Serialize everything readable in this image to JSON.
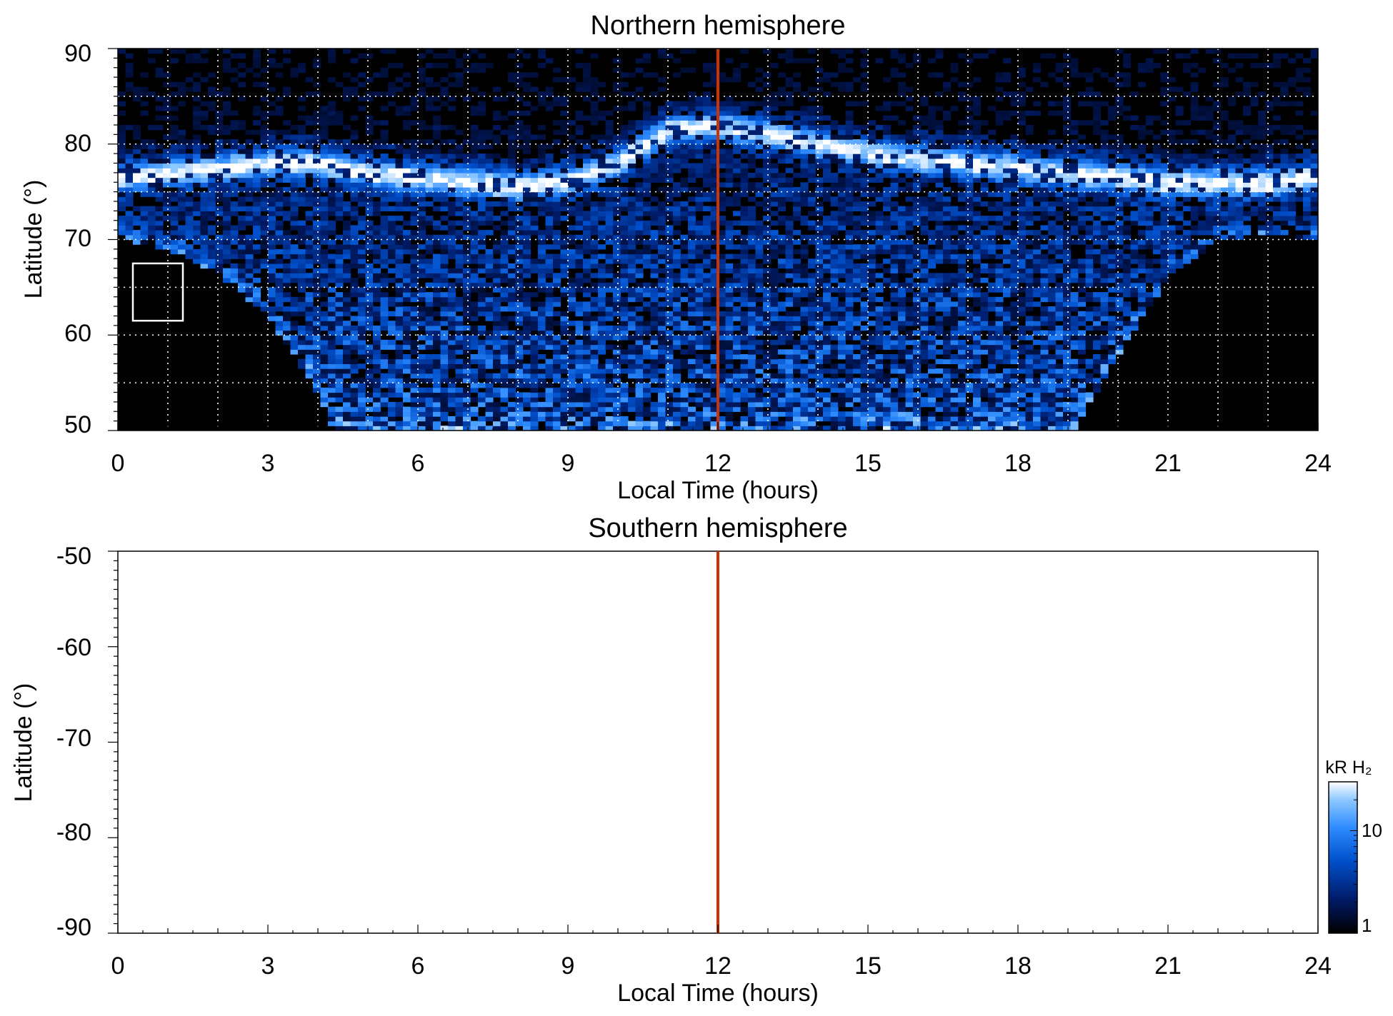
{
  "chart_data": [
    {
      "type": "heatmap",
      "title": "Northern hemisphere",
      "xlabel": "Local Time (hours)",
      "ylabel": "Latitude (°)",
      "xlim": [
        0,
        24
      ],
      "ylim": [
        50,
        90
      ],
      "xticks": [
        "0",
        "3",
        "6",
        "9",
        "12",
        "15",
        "18",
        "21",
        "24"
      ],
      "yticks": [
        "50",
        "60",
        "70",
        "80",
        "90"
      ],
      "grid": true,
      "noon_line_x": 12,
      "reference_box": {
        "x": [
          0.3,
          1.3
        ],
        "y": [
          61.5,
          67.5
        ]
      },
      "auroral_oval": {
        "x": [
          0,
          1,
          2,
          3,
          4,
          5,
          6,
          7,
          8,
          9,
          10,
          11,
          12,
          13,
          14,
          15,
          16,
          17,
          18,
          19,
          20,
          21,
          22,
          23,
          24
        ],
        "lat": [
          76.5,
          77,
          77.5,
          78,
          78,
          77,
          76.5,
          76,
          75.5,
          76,
          78,
          81.5,
          82,
          81,
          80,
          79,
          78.5,
          78,
          77.5,
          77,
          76.5,
          76,
          76,
          76,
          76.5
        ]
      },
      "coverage_boundary": {
        "x": [
          0,
          1,
          2,
          3,
          4,
          4.3,
          19.1,
          20,
          21,
          22,
          23,
          24
        ],
        "lat": [
          70,
          69,
          66.5,
          62,
          54,
          50,
          50,
          58,
          66,
          70,
          70.5,
          70
        ]
      }
    },
    {
      "type": "heatmap",
      "title": "Southern hemisphere",
      "xlabel": "Local Time (hours)",
      "ylabel": "Latitude (°)",
      "xlim": [
        0,
        24
      ],
      "ylim": [
        -90,
        -50
      ],
      "xticks": [
        "0",
        "3",
        "6",
        "9",
        "12",
        "15",
        "18",
        "21",
        "24"
      ],
      "yticks": [
        "-90",
        "-80",
        "-70",
        "-60",
        "-50"
      ],
      "grid": false,
      "noon_line_x": 12,
      "colorbar": {
        "label": "kR H₂",
        "scale": "log",
        "range": [
          1,
          30
        ],
        "ticks": [
          "1",
          "10"
        ],
        "colors": [
          "#000000",
          "#001a66",
          "#0050cc",
          "#2f8dff",
          "#8cc6ff",
          "#ffffff"
        ]
      }
    }
  ],
  "colors": {
    "noon_line": "#cc3300",
    "grid": "#ffffff",
    "background": "#000000"
  }
}
